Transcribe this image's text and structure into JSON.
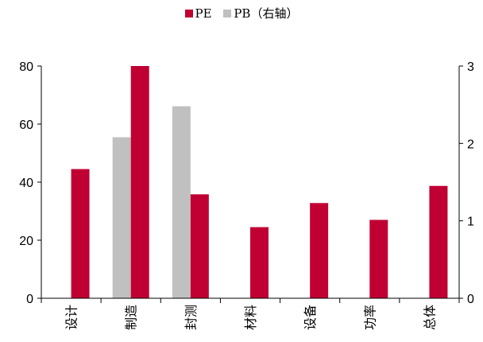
{
  "chart_data": {
    "type": "bar",
    "categories": [
      "设计",
      "制造",
      "封测",
      "材料",
      "设备",
      "功率",
      "总体"
    ],
    "series": [
      {
        "name": "PB（右轴）",
        "axis": "right",
        "color": "#c0c0c0",
        "values": [
          null,
          2.08,
          2.48,
          null,
          null,
          null,
          null
        ]
      },
      {
        "name": "PE",
        "axis": "left",
        "color": "#c00032",
        "values": [
          44.5,
          80.0,
          35.8,
          24.5,
          32.8,
          27.0,
          38.7
        ]
      }
    ],
    "y_left": {
      "lim": [
        0,
        80
      ],
      "ticks": [
        0,
        20,
        40,
        60,
        80
      ]
    },
    "y_right": {
      "lim": [
        0,
        3
      ],
      "ticks": [
        0,
        1,
        2,
        3
      ]
    },
    "legend_position": "top-center",
    "grid": false
  }
}
